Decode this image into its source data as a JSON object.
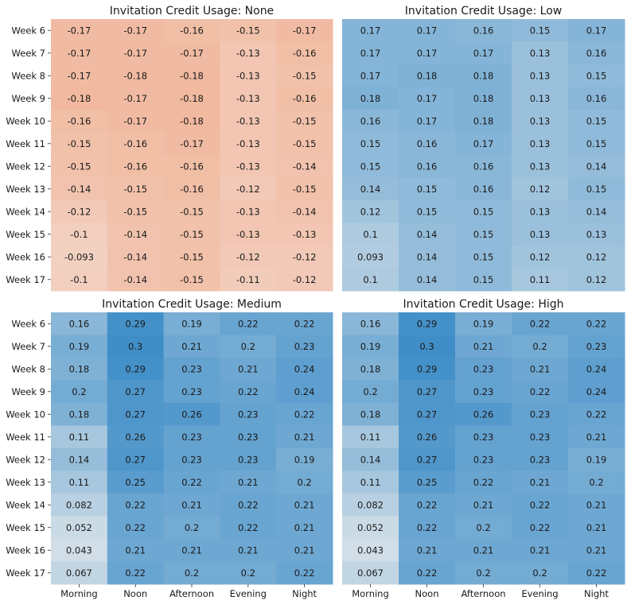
{
  "chart_data": {
    "type": "heatmap",
    "columns": [
      "Morning",
      "Noon",
      "Afternoon",
      "Evening",
      "Night"
    ],
    "rows": [
      "Week 6",
      "Week 7",
      "Week 8",
      "Week 9",
      "Week 10",
      "Week 11",
      "Week 12",
      "Week 13",
      "Week 14",
      "Week 15",
      "Week 16",
      "Week 17"
    ],
    "color_scale": {
      "negative_max": "#ef9a74",
      "positive_max": "#3f8ec8",
      "zero": "#f4f1ee",
      "vmax": 0.3
    },
    "panels": [
      {
        "title": "Invitation Credit Usage: None",
        "values": [
          [
            -0.17,
            -0.17,
            -0.16,
            -0.15,
            -0.17
          ],
          [
            -0.17,
            -0.17,
            -0.17,
            -0.13,
            -0.16
          ],
          [
            -0.17,
            -0.18,
            -0.18,
            -0.13,
            -0.15
          ],
          [
            -0.18,
            -0.17,
            -0.18,
            -0.13,
            -0.16
          ],
          [
            -0.16,
            -0.17,
            -0.18,
            -0.13,
            -0.15
          ],
          [
            -0.15,
            -0.16,
            -0.17,
            -0.13,
            -0.15
          ],
          [
            -0.15,
            -0.16,
            -0.16,
            -0.13,
            -0.14
          ],
          [
            -0.14,
            -0.15,
            -0.16,
            -0.12,
            -0.15
          ],
          [
            -0.12,
            -0.15,
            -0.15,
            -0.13,
            -0.14
          ],
          [
            -0.1,
            -0.14,
            -0.15,
            -0.13,
            -0.13
          ],
          [
            -0.093,
            -0.14,
            -0.15,
            -0.12,
            -0.12
          ],
          [
            -0.1,
            -0.14,
            -0.15,
            -0.11,
            -0.12
          ]
        ]
      },
      {
        "title": "Invitation Credit Usage: Low",
        "values": [
          [
            0.17,
            0.17,
            0.16,
            0.15,
            0.17
          ],
          [
            0.17,
            0.17,
            0.17,
            0.13,
            0.16
          ],
          [
            0.17,
            0.18,
            0.18,
            0.13,
            0.15
          ],
          [
            0.18,
            0.17,
            0.18,
            0.13,
            0.16
          ],
          [
            0.16,
            0.17,
            0.18,
            0.13,
            0.15
          ],
          [
            0.15,
            0.16,
            0.17,
            0.13,
            0.15
          ],
          [
            0.15,
            0.16,
            0.16,
            0.13,
            0.14
          ],
          [
            0.14,
            0.15,
            0.16,
            0.12,
            0.15
          ],
          [
            0.12,
            0.15,
            0.15,
            0.13,
            0.14
          ],
          [
            0.1,
            0.14,
            0.15,
            0.13,
            0.13
          ],
          [
            0.093,
            0.14,
            0.15,
            0.12,
            0.12
          ],
          [
            0.1,
            0.14,
            0.15,
            0.11,
            0.12
          ]
        ]
      },
      {
        "title": "Invitation Credit Usage: Medium",
        "values": [
          [
            0.16,
            0.29,
            0.19,
            0.22,
            0.22
          ],
          [
            0.19,
            0.3,
            0.21,
            0.2,
            0.23
          ],
          [
            0.18,
            0.29,
            0.23,
            0.21,
            0.24
          ],
          [
            0.2,
            0.27,
            0.23,
            0.22,
            0.24
          ],
          [
            0.18,
            0.27,
            0.26,
            0.23,
            0.22
          ],
          [
            0.11,
            0.26,
            0.23,
            0.23,
            0.21
          ],
          [
            0.14,
            0.27,
            0.23,
            0.23,
            0.19
          ],
          [
            0.11,
            0.25,
            0.22,
            0.21,
            0.2
          ],
          [
            0.082,
            0.22,
            0.21,
            0.22,
            0.21
          ],
          [
            0.052,
            0.22,
            0.2,
            0.22,
            0.21
          ],
          [
            0.043,
            0.21,
            0.21,
            0.21,
            0.21
          ],
          [
            0.067,
            0.22,
            0.2,
            0.2,
            0.22
          ]
        ]
      },
      {
        "title": "Invitation Credit Usage: High",
        "values": [
          [
            0.16,
            0.29,
            0.19,
            0.22,
            0.22
          ],
          [
            0.19,
            0.3,
            0.21,
            0.2,
            0.23
          ],
          [
            0.18,
            0.29,
            0.23,
            0.21,
            0.24
          ],
          [
            0.2,
            0.27,
            0.23,
            0.22,
            0.24
          ],
          [
            0.18,
            0.27,
            0.26,
            0.23,
            0.22
          ],
          [
            0.11,
            0.26,
            0.23,
            0.23,
            0.21
          ],
          [
            0.14,
            0.27,
            0.23,
            0.23,
            0.19
          ],
          [
            0.11,
            0.25,
            0.22,
            0.21,
            0.2
          ],
          [
            0.082,
            0.22,
            0.21,
            0.22,
            0.21
          ],
          [
            0.052,
            0.22,
            0.2,
            0.22,
            0.21
          ],
          [
            0.043,
            0.21,
            0.21,
            0.21,
            0.21
          ],
          [
            0.067,
            0.22,
            0.2,
            0.2,
            0.22
          ]
        ]
      }
    ]
  }
}
